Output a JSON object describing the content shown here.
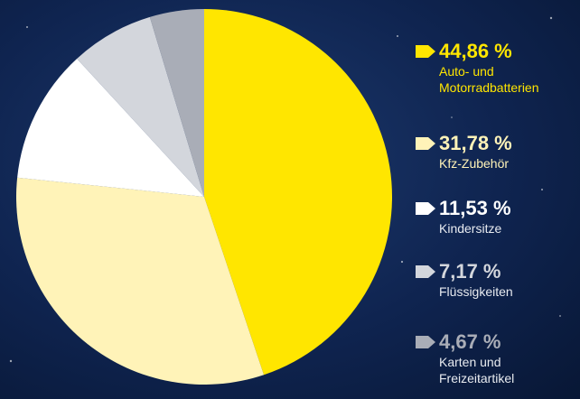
{
  "chart_data": {
    "type": "pie",
    "categories": [
      "Auto- und Motorradbatterien",
      "Kfz-Zubehör",
      "Kindersitze",
      "Flüssigkeiten",
      "Karten und Freizeitartikel"
    ],
    "values": [
      44.86,
      31.78,
      11.53,
      7.17,
      4.67
    ],
    "value_labels": [
      "44,86 %",
      "31,78 %",
      "11,53 %",
      "7,17 %",
      "4,67 %"
    ],
    "colors": [
      "#ffe600",
      "#fff3b8",
      "#ffffff",
      "#d3d6dc",
      "#a9adb7"
    ]
  }
}
